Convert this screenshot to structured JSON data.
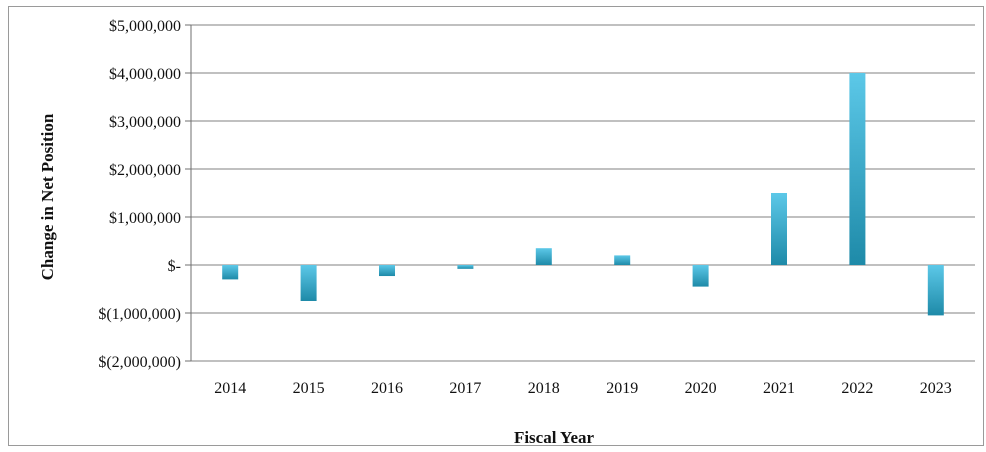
{
  "chart_data": {
    "type": "bar",
    "title": "",
    "xlabel": "Fiscal Year",
    "ylabel": "Change in Net Position",
    "categories": [
      "2014",
      "2015",
      "2016",
      "2017",
      "2018",
      "2019",
      "2020",
      "2021",
      "2022",
      "2023"
    ],
    "values": [
      -300000,
      -750000,
      -230000,
      -80000,
      350000,
      200000,
      -450000,
      1500000,
      4000000,
      -1050000
    ],
    "ylim": [
      -2000000,
      5000000
    ],
    "yticks": [
      5000000,
      4000000,
      3000000,
      2000000,
      1000000,
      0,
      -1000000,
      -2000000
    ],
    "ytick_labels": [
      "$5,000,000",
      "$4,000,000",
      "$3,000,000",
      "$2,000,000",
      "$1,000,000",
      "$-",
      "$(1,000,000)",
      "$(2,000,000)"
    ],
    "grid": true,
    "legend": "none",
    "colors": {
      "bar_light": "#5cc8e8",
      "bar_dark": "#1e8aa8",
      "grid": "#808080",
      "axis": "#6f6f6f"
    }
  }
}
